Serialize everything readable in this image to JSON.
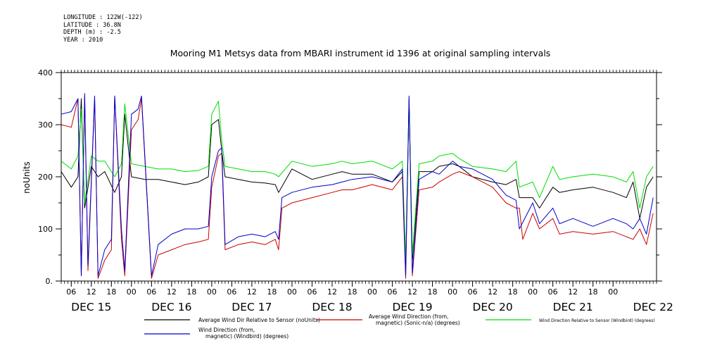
{
  "meta": {
    "longitude": "LONGITUDE : 122W(-122)",
    "latitude": "LATITUDE : 36.8N",
    "depth": "DEPTH (m) : -2.5",
    "year": "YEAR : 2010"
  },
  "chart_data": {
    "type": "line",
    "title": "Mooring M1 Metsys data from MBARI instrument id 1396 at original sampling intervals",
    "xlabel": "",
    "ylabel": "noUnits",
    "xlim": [
      "2010-12-15 03:00",
      "2010-12-22 13:00"
    ],
    "ylim": [
      0,
      400
    ],
    "yticks": [
      0,
      100,
      200,
      300,
      400
    ],
    "ytick_labels": [
      "0.",
      "100",
      "200",
      "300",
      "400"
    ],
    "xticks": [
      {
        "t": "2010-12-15 06:00",
        "label": "06"
      },
      {
        "t": "2010-12-15 12:00",
        "label": "12"
      },
      {
        "t": "2010-12-15 18:00",
        "label": "18"
      },
      {
        "t": "2010-12-16 00:00",
        "label": "00"
      },
      {
        "t": "2010-12-16 06:00",
        "label": "06"
      },
      {
        "t": "2010-12-16 12:00",
        "label": "12"
      },
      {
        "t": "2010-12-16 18:00",
        "label": "18"
      },
      {
        "t": "2010-12-17 00:00",
        "label": "00"
      },
      {
        "t": "2010-12-17 06:00",
        "label": "06"
      },
      {
        "t": "2010-12-17 12:00",
        "label": "12"
      },
      {
        "t": "2010-12-17 18:00",
        "label": "18"
      },
      {
        "t": "2010-12-18 00:00",
        "label": "00"
      },
      {
        "t": "2010-12-18 06:00",
        "label": "06"
      },
      {
        "t": "2010-12-18 12:00",
        "label": "12"
      },
      {
        "t": "2010-12-18 18:00",
        "label": "18"
      },
      {
        "t": "2010-12-19 00:00",
        "label": "00"
      },
      {
        "t": "2010-12-19 06:00",
        "label": "06"
      },
      {
        "t": "2010-12-19 12:00",
        "label": "12"
      },
      {
        "t": "2010-12-19 18:00",
        "label": "18"
      },
      {
        "t": "2010-12-20 00:00",
        "label": "00"
      },
      {
        "t": "2010-12-20 06:00",
        "label": "06"
      },
      {
        "t": "2010-12-20 12:00",
        "label": "12"
      },
      {
        "t": "2010-12-20 18:00",
        "label": "18"
      },
      {
        "t": "2010-12-21 00:00",
        "label": "00"
      },
      {
        "t": "2010-12-21 06:00",
        "label": "06"
      },
      {
        "t": "2010-12-21 12:00",
        "label": "12"
      },
      {
        "t": "2010-12-21 18:00",
        "label": "18"
      },
      {
        "t": "2010-12-22 00:00",
        "label": "00"
      }
    ],
    "day_labels": [
      {
        "t": "2010-12-15 12:00",
        "label": "DEC 15"
      },
      {
        "t": "2010-12-16 12:00",
        "label": "DEC 16"
      },
      {
        "t": "2010-12-17 12:00",
        "label": "DEC 17"
      },
      {
        "t": "2010-12-18 12:00",
        "label": "DEC 18"
      },
      {
        "t": "2010-12-19 12:00",
        "label": "DEC 19"
      },
      {
        "t": "2010-12-20 12:00",
        "label": "DEC 20"
      },
      {
        "t": "2010-12-21 12:00",
        "label": "DEC 21"
      },
      {
        "t": "2010-12-22 12:00",
        "label": "DEC 22"
      }
    ],
    "grid": false,
    "legend_position": "bottom",
    "series": [
      {
        "name": "Average Wind Dir Relative to Sensor (noUnits)",
        "color": "#000000",
        "x": [
          "2010-12-15 03:00",
          "2010-12-15 06:00",
          "2010-12-15 08:00",
          "2010-12-15 09:00",
          "2010-12-15 10:00",
          "2010-12-15 12:00",
          "2010-12-15 14:00",
          "2010-12-15 16:00",
          "2010-12-15 19:00",
          "2010-12-15 21:00",
          "2010-12-15 22:00",
          "2010-12-16 00:00",
          "2010-12-16 04:00",
          "2010-12-16 08:00",
          "2010-12-16 12:00",
          "2010-12-16 16:00",
          "2010-12-16 20:00",
          "2010-12-16 23:00",
          "2010-12-17 00:00",
          "2010-12-17 02:00",
          "2010-12-17 03:00",
          "2010-12-17 04:00",
          "2010-12-17 08:00",
          "2010-12-17 12:00",
          "2010-12-17 16:00",
          "2010-12-17 19:00",
          "2010-12-17 20:00",
          "2010-12-18 00:00",
          "2010-12-18 06:00",
          "2010-12-18 12:00",
          "2010-12-18 15:00",
          "2010-12-18 18:00",
          "2010-12-19 00:00",
          "2010-12-19 06:00",
          "2010-12-19 09:00",
          "2010-12-19 10:00",
          "2010-12-19 11:00",
          "2010-12-19 12:00",
          "2010-12-19 14:00",
          "2010-12-19 18:00",
          "2010-12-19 20:00",
          "2010-12-20 00:00",
          "2010-12-20 02:00",
          "2010-12-20 06:00",
          "2010-12-20 12:00",
          "2010-12-20 16:00",
          "2010-12-20 19:00",
          "2010-12-20 20:00",
          "2010-12-21 00:00",
          "2010-12-21 02:00",
          "2010-12-21 06:00",
          "2010-12-21 08:00",
          "2010-12-21 12:00",
          "2010-12-21 18:00",
          "2010-12-22 00:00",
          "2010-12-22 04:00",
          "2010-12-22 06:00",
          "2010-12-22 08:00",
          "2010-12-22 10:00",
          "2010-12-22 12:00"
        ],
        "y": [
          210,
          180,
          200,
          350,
          140,
          220,
          200,
          210,
          170,
          200,
          320,
          200,
          195,
          195,
          190,
          185,
          190,
          200,
          300,
          310,
          250,
          200,
          195,
          190,
          188,
          185,
          170,
          215,
          195,
          205,
          210,
          205,
          205,
          190,
          210,
          30,
          345,
          40,
          210,
          210,
          220,
          225,
          220,
          200,
          190,
          185,
          195,
          160,
          160,
          140,
          180,
          170,
          175,
          180,
          170,
          160,
          190,
          120,
          180,
          200
        ]
      },
      {
        "name": "Average Wind Direction (from, magnetic) (Sonic-n/a) (degrees)",
        "color": "#cc0000",
        "x": [
          "2010-12-15 03:00",
          "2010-12-15 06:00",
          "2010-12-15 08:00",
          "2010-12-15 09:00",
          "2010-12-15 10:00",
          "2010-12-15 11:00",
          "2010-12-15 13:00",
          "2010-12-15 14:00",
          "2010-12-15 16:00",
          "2010-12-15 18:00",
          "2010-12-15 19:00",
          "2010-12-15 21:00",
          "2010-12-15 22:00",
          "2010-12-16 00:00",
          "2010-12-16 02:00",
          "2010-12-16 03:00",
          "2010-12-16 06:00",
          "2010-12-16 08:00",
          "2010-12-16 12:00",
          "2010-12-16 16:00",
          "2010-12-16 20:00",
          "2010-12-16 23:00",
          "2010-12-17 00:00",
          "2010-12-17 02:00",
          "2010-12-17 03:00",
          "2010-12-17 04:00",
          "2010-12-17 08:00",
          "2010-12-17 12:00",
          "2010-12-17 16:00",
          "2010-12-17 19:00",
          "2010-12-17 20:00",
          "2010-12-17 21:00",
          "2010-12-18 00:00",
          "2010-12-18 06:00",
          "2010-12-18 12:00",
          "2010-12-18 15:00",
          "2010-12-18 18:00",
          "2010-12-19 00:00",
          "2010-12-19 06:00",
          "2010-12-19 09:00",
          "2010-12-19 10:00",
          "2010-12-19 11:00",
          "2010-12-19 12:00",
          "2010-12-19 14:00",
          "2010-12-19 18:00",
          "2010-12-19 20:00",
          "2010-12-20 00:00",
          "2010-12-20 02:00",
          "2010-12-20 06:00",
          "2010-12-20 12:00",
          "2010-12-20 16:00",
          "2010-12-20 19:00",
          "2010-12-20 20:00",
          "2010-12-20 21:00",
          "2010-12-21 00:00",
          "2010-12-21 02:00",
          "2010-12-21 06:00",
          "2010-12-21 08:00",
          "2010-12-21 12:00",
          "2010-12-21 18:00",
          "2010-12-22 00:00",
          "2010-12-22 04:00",
          "2010-12-22 06:00",
          "2010-12-22 08:00",
          "2010-12-22 10:00",
          "2010-12-22 12:00"
        ],
        "y": [
          300,
          295,
          350,
          10,
          355,
          20,
          350,
          5,
          40,
          60,
          355,
          80,
          10,
          290,
          310,
          350,
          5,
          50,
          60,
          70,
          75,
          80,
          180,
          240,
          245,
          60,
          70,
          75,
          70,
          80,
          60,
          140,
          150,
          160,
          170,
          175,
          175,
          185,
          175,
          200,
          5,
          350,
          10,
          175,
          180,
          190,
          205,
          210,
          200,
          180,
          150,
          140,
          140,
          80,
          130,
          100,
          120,
          90,
          95,
          90,
          95,
          85,
          80,
          100,
          70,
          130
        ]
      },
      {
        "name": "Wind Direction Relative to Sensor (Windbird) (degrees)",
        "color": "#00dd00",
        "x": [
          "2010-12-15 03:00",
          "2010-12-15 06:00",
          "2010-12-15 08:00",
          "2010-12-15 09:00",
          "2010-12-15 10:00",
          "2010-12-15 12:00",
          "2010-12-15 14:00",
          "2010-12-15 16:00",
          "2010-12-15 19:00",
          "2010-12-15 21:00",
          "2010-12-15 22:00",
          "2010-12-16 00:00",
          "2010-12-16 04:00",
          "2010-12-16 08:00",
          "2010-12-16 12:00",
          "2010-12-16 16:00",
          "2010-12-16 20:00",
          "2010-12-16 23:00",
          "2010-12-17 00:00",
          "2010-12-17 02:00",
          "2010-12-17 03:00",
          "2010-12-17 04:00",
          "2010-12-17 08:00",
          "2010-12-17 12:00",
          "2010-12-17 16:00",
          "2010-12-17 19:00",
          "2010-12-17 20:00",
          "2010-12-18 00:00",
          "2010-12-18 06:00",
          "2010-12-18 12:00",
          "2010-12-18 15:00",
          "2010-12-18 18:00",
          "2010-12-19 00:00",
          "2010-12-19 06:00",
          "2010-12-19 09:00",
          "2010-12-19 10:00",
          "2010-12-19 11:00",
          "2010-12-19 12:00",
          "2010-12-19 14:00",
          "2010-12-19 18:00",
          "2010-12-19 20:00",
          "2010-12-20 00:00",
          "2010-12-20 02:00",
          "2010-12-20 06:00",
          "2010-12-20 12:00",
          "2010-12-20 16:00",
          "2010-12-20 19:00",
          "2010-12-20 20:00",
          "2010-12-21 00:00",
          "2010-12-21 02:00",
          "2010-12-21 06:00",
          "2010-12-21 08:00",
          "2010-12-21 12:00",
          "2010-12-21 18:00",
          "2010-12-22 00:00",
          "2010-12-22 04:00",
          "2010-12-22 06:00",
          "2010-12-22 08:00",
          "2010-12-22 10:00",
          "2010-12-22 12:00"
        ],
        "y": [
          230,
          215,
          240,
          330,
          150,
          240,
          230,
          230,
          200,
          225,
          340,
          225,
          220,
          215,
          215,
          210,
          212,
          220,
          320,
          345,
          270,
          220,
          215,
          210,
          210,
          205,
          200,
          230,
          220,
          225,
          230,
          225,
          230,
          215,
          230,
          40,
          350,
          50,
          225,
          230,
          240,
          245,
          235,
          220,
          215,
          210,
          230,
          180,
          190,
          160,
          220,
          195,
          200,
          205,
          200,
          190,
          210,
          140,
          200,
          220
        ]
      },
      {
        "name": "Wind Direction (from, magnetic) (Windbird) (degrees)",
        "color": "#0000cc",
        "x": [
          "2010-12-15 03:00",
          "2010-12-15 06:00",
          "2010-12-15 08:00",
          "2010-12-15 09:00",
          "2010-12-15 10:00",
          "2010-12-15 11:00",
          "2010-12-15 13:00",
          "2010-12-15 14:00",
          "2010-12-15 16:00",
          "2010-12-15 18:00",
          "2010-12-15 19:00",
          "2010-12-15 21:00",
          "2010-12-15 22:00",
          "2010-12-16 00:00",
          "2010-12-16 02:00",
          "2010-12-16 03:00",
          "2010-12-16 06:00",
          "2010-12-16 08:00",
          "2010-12-16 12:00",
          "2010-12-16 16:00",
          "2010-12-16 20:00",
          "2010-12-16 23:00",
          "2010-12-17 00:00",
          "2010-12-17 02:00",
          "2010-12-17 03:00",
          "2010-12-17 04:00",
          "2010-12-17 08:00",
          "2010-12-17 12:00",
          "2010-12-17 16:00",
          "2010-12-17 19:00",
          "2010-12-17 20:00",
          "2010-12-17 21:00",
          "2010-12-18 00:00",
          "2010-12-18 06:00",
          "2010-12-18 12:00",
          "2010-12-18 15:00",
          "2010-12-18 18:00",
          "2010-12-19 00:00",
          "2010-12-19 06:00",
          "2010-12-19 09:00",
          "2010-12-19 10:00",
          "2010-12-19 11:00",
          "2010-12-19 12:00",
          "2010-12-19 14:00",
          "2010-12-19 18:00",
          "2010-12-19 20:00",
          "2010-12-20 00:00",
          "2010-12-20 02:00",
          "2010-12-20 06:00",
          "2010-12-20 12:00",
          "2010-12-20 16:00",
          "2010-12-20 19:00",
          "2010-12-20 20:00",
          "2010-12-21 00:00",
          "2010-12-21 02:00",
          "2010-12-21 06:00",
          "2010-12-21 08:00",
          "2010-12-21 12:00",
          "2010-12-21 18:00",
          "2010-12-22 00:00",
          "2010-12-22 04:00",
          "2010-12-22 06:00",
          "2010-12-22 08:00",
          "2010-12-22 10:00",
          "2010-12-22 12:00"
        ],
        "y": [
          320,
          325,
          350,
          10,
          360,
          30,
          355,
          10,
          60,
          80,
          355,
          100,
          20,
          320,
          330,
          355,
          10,
          70,
          90,
          100,
          100,
          105,
          200,
          250,
          255,
          70,
          85,
          90,
          85,
          95,
          80,
          160,
          170,
          180,
          185,
          190,
          195,
          200,
          190,
          215,
          10,
          355,
          15,
          195,
          210,
          205,
          230,
          220,
          215,
          195,
          165,
          155,
          100,
          150,
          110,
          140,
          110,
          120,
          105,
          120,
          110,
          100,
          120,
          90,
          160
        ]
      }
    ]
  }
}
